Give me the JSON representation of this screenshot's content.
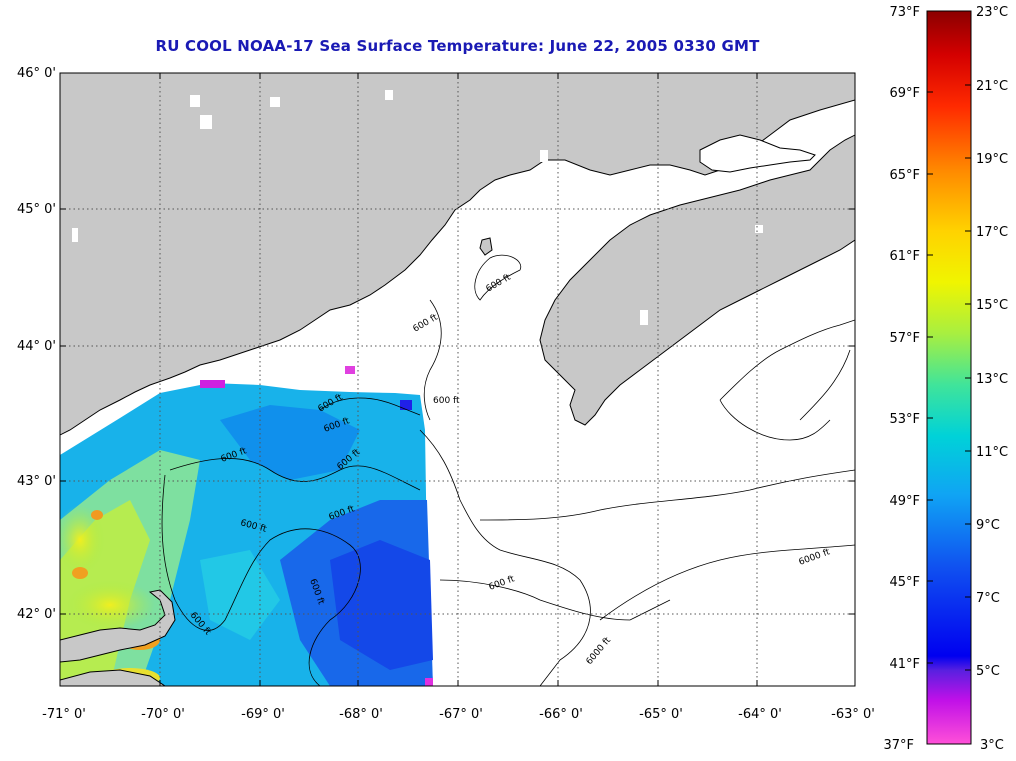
{
  "title": "RU COOL  NOAA-17  Sea Surface Temperature:  June 22, 2005 0330 GMT",
  "map": {
    "lat_range": [
      41.5,
      46.0
    ],
    "lon_range": [
      -71,
      -63
    ],
    "lat_ticks": [
      "46° 0'",
      "45° 0'",
      "44° 0'",
      "43° 0'",
      "42° 0'"
    ],
    "lon_ticks": [
      "-71° 0'",
      "-70° 0'",
      "-69° 0'",
      "-68° 0'",
      "-67° 0'",
      "-66° 0'",
      "-65° 0'",
      "-64° 0'",
      "-63° 0'"
    ],
    "grid": "dotted",
    "land_color": "#c8c8c8",
    "nodata_color": "#ffffff",
    "contour_labels": [
      "600 ft",
      "600 ft",
      "600 ft",
      "600 ft",
      "600 ft",
      "600 ft",
      "600 ft",
      "600 ft",
      "600 ft",
      "600 ft",
      "600 ft",
      "600 ft",
      "6000 ft",
      "6000 ft"
    ]
  },
  "colorbar": {
    "fahrenheit": [
      "73°F",
      "69°F",
      "65°F",
      "61°F",
      "57°F",
      "53°F",
      "49°F",
      "45°F",
      "41°F",
      "37°F"
    ],
    "celsius": [
      "23°C",
      "21°C",
      "19°C",
      "17°C",
      "15°C",
      "13°C",
      "11°C",
      "9°C",
      "7°C",
      "5°C",
      "3°C"
    ],
    "colors": [
      "#8b0000",
      "#ff2000",
      "#ff7a00",
      "#ffc400",
      "#f2f500",
      "#aef040",
      "#4ce888",
      "#00d0d0",
      "#10a8f0",
      "#1060f0",
      "#0000f0",
      "#8020d8",
      "#ff00ff",
      "#ff60d0"
    ]
  }
}
